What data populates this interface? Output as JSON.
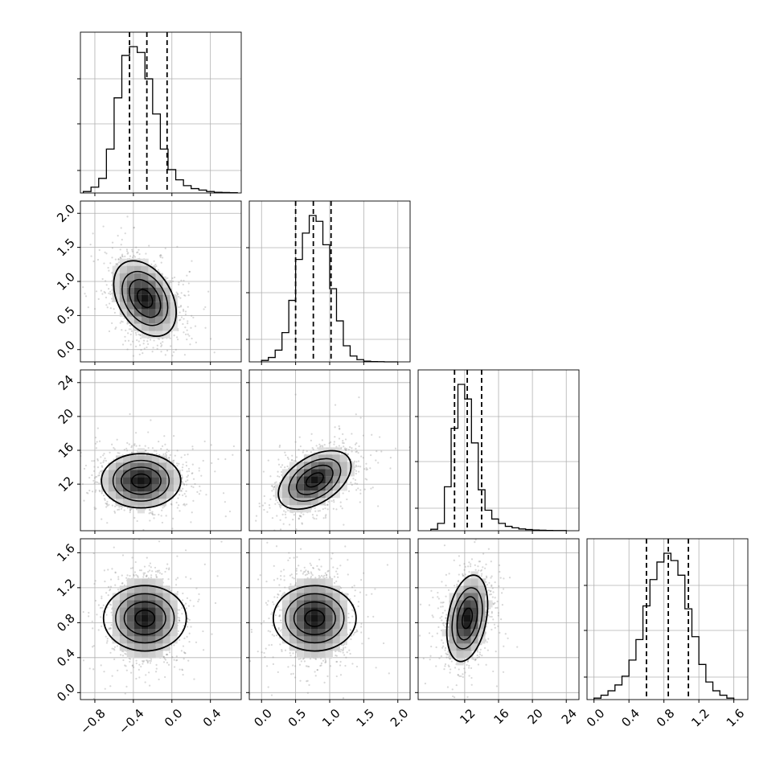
{
  "chart_data": {
    "type": "corner",
    "variables": [
      {
        "range": [
          -0.95,
          0.72
        ],
        "ticks": [
          -0.8,
          -0.4,
          0.0,
          0.4
        ],
        "tick_labels": [
          "−0.8",
          "−0.4",
          "0.0",
          "0.4"
        ],
        "quantiles": [
          -0.44,
          -0.26,
          -0.05
        ],
        "hist_bins": [
          -0.92,
          -0.84,
          -0.76,
          -0.68,
          -0.6,
          -0.52,
          -0.44,
          -0.36,
          -0.28,
          -0.2,
          -0.12,
          -0.04,
          0.04,
          0.12,
          0.2,
          0.28,
          0.36,
          0.44,
          0.52,
          0.6,
          0.68
        ],
        "hist_counts": [
          0.01,
          0.04,
          0.1,
          0.3,
          0.65,
          0.94,
          1.0,
          0.96,
          0.78,
          0.54,
          0.3,
          0.16,
          0.09,
          0.05,
          0.03,
          0.02,
          0.01,
          0.005,
          0.003,
          0.002
        ]
      },
      {
        "range": [
          -0.18,
          2.18
        ],
        "ticks": [
          0.0,
          0.5,
          1.0,
          1.5,
          2.0
        ],
        "tick_labels": [
          "0.0",
          "0.5",
          "1.0",
          "1.5",
          "2.0"
        ],
        "quantiles": [
          0.5,
          0.76,
          1.02
        ],
        "hist_bins": [
          0.0,
          0.1,
          0.2,
          0.3,
          0.4,
          0.5,
          0.6,
          0.7,
          0.8,
          0.9,
          1.0,
          1.1,
          1.2,
          1.3,
          1.4,
          1.5,
          1.6,
          1.7,
          1.8,
          1.9,
          2.0
        ],
        "hist_counts": [
          0.01,
          0.03,
          0.08,
          0.2,
          0.42,
          0.7,
          0.88,
          1.0,
          0.96,
          0.8,
          0.5,
          0.28,
          0.11,
          0.04,
          0.015,
          0.005,
          0.002,
          0.001,
          0.0,
          0.0
        ]
      },
      {
        "range": [
          6.5,
          25.5
        ],
        "ticks": [
          12,
          16,
          20,
          24
        ],
        "tick_labels": [
          "12",
          "16",
          "20",
          "24"
        ],
        "quantiles": [
          10.8,
          12.3,
          14.0
        ],
        "hist_bins": [
          8.0,
          8.8,
          9.6,
          10.4,
          11.2,
          12.0,
          12.8,
          13.6,
          14.4,
          15.2,
          16.0,
          16.8,
          17.6,
          18.4,
          19.2,
          20.0,
          20.8,
          21.6,
          22.4,
          23.2,
          24.0
        ],
        "hist_counts": [
          0.01,
          0.05,
          0.3,
          0.7,
          1.0,
          0.9,
          0.6,
          0.28,
          0.14,
          0.08,
          0.05,
          0.03,
          0.02,
          0.012,
          0.008,
          0.005,
          0.003,
          0.002,
          0.001,
          0.001
        ]
      },
      {
        "range": [
          -0.08,
          1.76
        ],
        "ticks": [
          0.0,
          0.4,
          0.8,
          1.2,
          1.6
        ],
        "tick_labels": [
          "0.0",
          "0.4",
          "0.8",
          "1.2",
          "1.6"
        ],
        "quantiles": [
          0.6,
          0.85,
          1.08
        ],
        "hist_bins": [
          0.0,
          0.08,
          0.16,
          0.24,
          0.32,
          0.4,
          0.48,
          0.56,
          0.64,
          0.72,
          0.8,
          0.88,
          0.96,
          1.04,
          1.12,
          1.2,
          1.28,
          1.36,
          1.44,
          1.52,
          1.6
        ],
        "hist_counts": [
          0.01,
          0.03,
          0.06,
          0.1,
          0.16,
          0.27,
          0.41,
          0.64,
          0.82,
          0.94,
          1.0,
          0.95,
          0.85,
          0.62,
          0.43,
          0.24,
          0.12,
          0.06,
          0.03,
          0.01
        ]
      }
    ],
    "pairs": [
      {
        "x": 0,
        "y": 1,
        "center": [
          -0.28,
          0.75
        ],
        "sd": [
          0.16,
          0.27
        ],
        "corr": -0.35
      },
      {
        "x": 0,
        "y": 2,
        "center": [
          -0.32,
          12.4
        ],
        "sd": [
          0.2,
          1.6
        ],
        "corr": 0.0
      },
      {
        "x": 1,
        "y": 2,
        "center": [
          0.78,
          12.5
        ],
        "sd": [
          0.26,
          1.7
        ],
        "corr": 0.45
      },
      {
        "x": 0,
        "y": 3,
        "center": [
          -0.28,
          0.85
        ],
        "sd": [
          0.17,
          0.23
        ],
        "corr": 0.0
      },
      {
        "x": 1,
        "y": 3,
        "center": [
          0.78,
          0.85
        ],
        "sd": [
          0.24,
          0.23
        ],
        "corr": 0.0
      },
      {
        "x": 2,
        "y": 3,
        "center": [
          12.3,
          0.85
        ],
        "sd": [
          1.2,
          0.24
        ],
        "corr": 0.3
      }
    ],
    "grid": true,
    "colors": {
      "line": "#000000",
      "grid": "#b0b0b0",
      "points": "#8c8c8c"
    }
  }
}
